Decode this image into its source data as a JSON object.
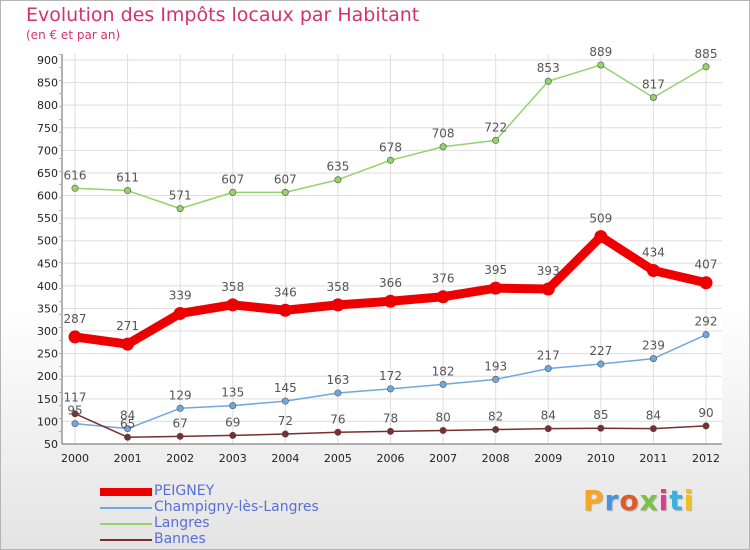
{
  "title": "Evolution des Impôts locaux par Habitant",
  "subtitle": "(en € et par an)",
  "logo": {
    "text": "Proxiti",
    "colors": [
      "#f5a623",
      "#4a90e2",
      "#e05a2a",
      "#7bc142",
      "#e03a8c",
      "#3ab0e0",
      "#f0c020"
    ]
  },
  "chart_data": {
    "type": "line",
    "x": [
      "2000",
      "2001",
      "2002",
      "2003",
      "2004",
      "2005",
      "2006",
      "2007",
      "2008",
      "2009",
      "2010",
      "2011",
      "2012"
    ],
    "ylim": [
      50,
      900
    ],
    "yticks": [
      50,
      100,
      150,
      200,
      250,
      300,
      350,
      400,
      450,
      500,
      550,
      600,
      650,
      700,
      750,
      800,
      850,
      900
    ],
    "grid": true,
    "legend_position": "bottom-left",
    "series": [
      {
        "name": "PEIGNEY",
        "color": "#ee0000",
        "values": [
          287,
          271,
          339,
          358,
          346,
          358,
          366,
          376,
          395,
          393,
          509,
          434,
          407
        ],
        "labels": [
          "287",
          "271",
          "339",
          "358",
          "346",
          "358",
          "366",
          "376",
          "395",
          "393",
          "509",
          "434",
          "407"
        ]
      },
      {
        "name": "Champigny-lès-Langres",
        "color": "#6fa8dc",
        "values": [
          95,
          84,
          129,
          135,
          145,
          163,
          172,
          182,
          193,
          217,
          227,
          239,
          292
        ],
        "labels": [
          "95",
          "84",
          "129",
          "135",
          "145",
          "163",
          "172",
          "182",
          "193",
          "217",
          "227",
          "239",
          "292"
        ]
      },
      {
        "name": "Langres",
        "color": "#93d36a",
        "values": [
          616,
          611,
          571,
          607,
          607,
          635,
          678,
          708,
          722,
          853,
          889,
          817,
          885
        ],
        "labels": [
          "616",
          "611",
          "571",
          "607",
          "607",
          "635",
          "678",
          "708",
          "722",
          "853",
          "889",
          "817",
          "885"
        ]
      },
      {
        "name": "Bannes",
        "color": "#7a2e2e",
        "values": [
          117,
          65,
          67,
          69,
          72,
          76,
          78,
          80,
          82,
          84,
          85,
          84,
          90
        ],
        "labels": [
          "117",
          "65",
          "67",
          "69",
          "72",
          "76",
          "78",
          "80",
          "82",
          "84",
          "85",
          "84",
          "90"
        ]
      }
    ]
  }
}
